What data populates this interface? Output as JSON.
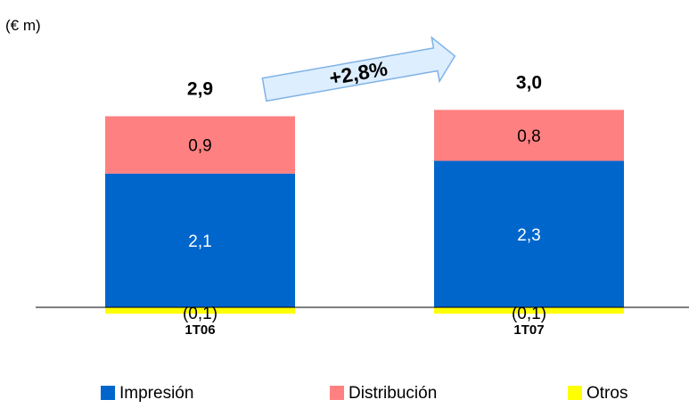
{
  "chart_data": {
    "type": "bar",
    "stacked": true,
    "unit_label": "(€ m)",
    "categories": [
      "1T06",
      "1T07"
    ],
    "series": [
      {
        "name": "Impresión",
        "color": "#0066CC",
        "values": [
          2.1,
          2.3
        ],
        "labels": [
          "2,1",
          "2,3"
        ],
        "label_color": "#ffffff"
      },
      {
        "name": "Distribución",
        "color": "#FF8080",
        "values": [
          0.9,
          0.8
        ],
        "labels": [
          "0,9",
          "0,8"
        ],
        "label_color": "#000000"
      },
      {
        "name": "Otros",
        "color": "#FFFF00",
        "values": [
          -0.1,
          -0.1
        ],
        "labels": [
          "(0,1)",
          "(0,1)"
        ],
        "label_color": "#000000"
      }
    ],
    "totals": [
      "2,9",
      "3,0"
    ],
    "growth": {
      "label": "+2,8%",
      "fill": "#DDEEFF",
      "stroke": "#7FB2E5"
    },
    "legend_position": "bottom",
    "grid": false,
    "xlabel": "",
    "ylabel": ""
  }
}
